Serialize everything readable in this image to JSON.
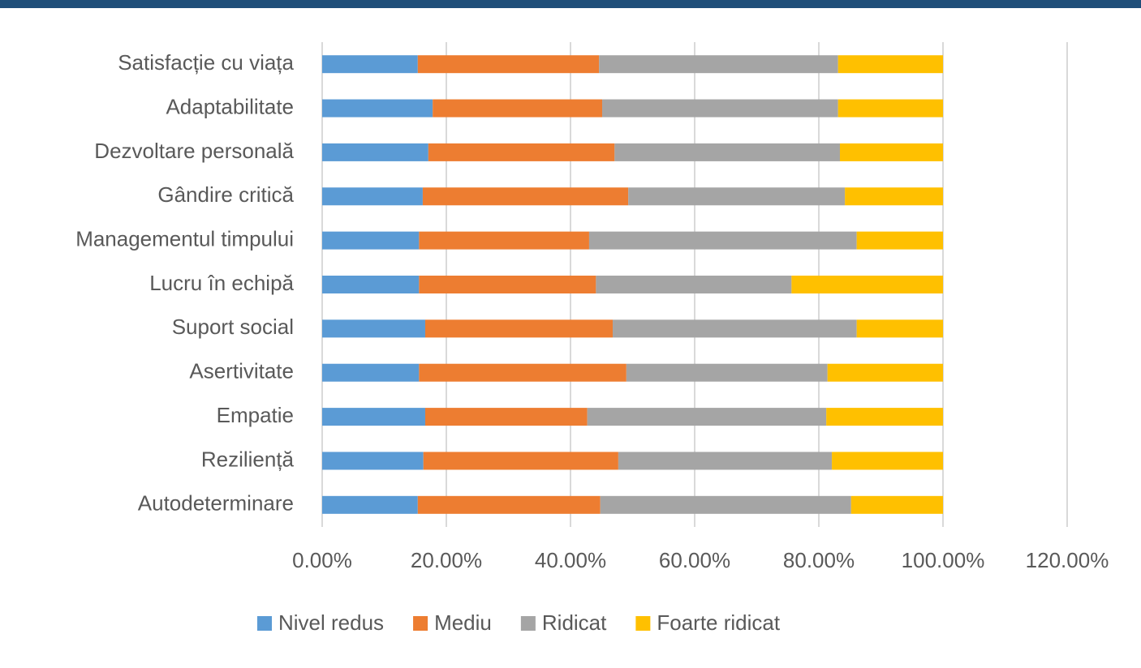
{
  "chart_data": {
    "type": "stacked-barh",
    "categories": [
      "Satisfacție cu viața",
      "Adaptabilitate",
      "Dezvoltare personală",
      "Gândire critică",
      "Managementul timpului",
      "Lucru în echipă",
      "Suport social",
      "Asertivitate",
      "Empatie",
      "Reziliență",
      "Autodeterminare"
    ],
    "series": [
      {
        "name": "Nivel redus",
        "color": "#5b9bd5",
        "values": [
          15.4,
          17.8,
          17.1,
          16.2,
          15.6,
          15.6,
          16.6,
          15.6,
          16.6,
          16.3,
          15.4
        ]
      },
      {
        "name": "Mediu",
        "color": "#ed7d31",
        "values": [
          29.2,
          27.3,
          30.0,
          33.1,
          27.4,
          28.5,
          30.2,
          33.4,
          26.1,
          31.4,
          29.4
        ]
      },
      {
        "name": "Ridicat",
        "color": "#a5a5a5",
        "values": [
          38.5,
          38.0,
          36.3,
          34.9,
          43.1,
          31.5,
          39.3,
          32.4,
          38.5,
          34.4,
          40.4
        ]
      },
      {
        "name": "Foarte ridicat",
        "color": "#ffc000",
        "values": [
          16.9,
          16.9,
          16.6,
          15.8,
          13.9,
          24.4,
          13.9,
          18.6,
          18.8,
          17.9,
          14.8
        ]
      }
    ],
    "xlim": [
      0,
      120
    ],
    "xticks": [
      {
        "value": 0,
        "label": "0.00%"
      },
      {
        "value": 20,
        "label": "20.00%"
      },
      {
        "value": 40,
        "label": "40.00%"
      },
      {
        "value": 60,
        "label": "60.00%"
      },
      {
        "value": 80,
        "label": "80.00%"
      },
      {
        "value": 100,
        "label": "100.00%"
      },
      {
        "value": 120,
        "label": "120.00%"
      }
    ],
    "grid": true,
    "legend": "bottom"
  }
}
